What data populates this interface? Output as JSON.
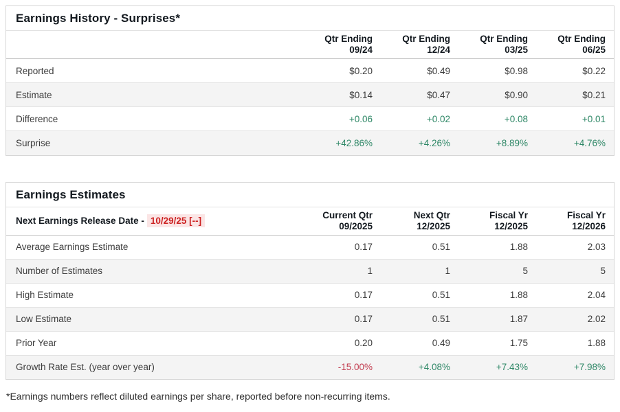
{
  "history": {
    "title": "Earnings History - Surprises*",
    "columns": [
      {
        "line1": "Qtr Ending",
        "line2": "09/24"
      },
      {
        "line1": "Qtr Ending",
        "line2": "12/24"
      },
      {
        "line1": "Qtr Ending",
        "line2": "03/25"
      },
      {
        "line1": "Qtr Ending",
        "line2": "06/25"
      }
    ],
    "rows": [
      {
        "label": "Reported",
        "values": [
          "$0.20",
          "$0.49",
          "$0.98",
          "$0.22"
        ]
      },
      {
        "label": "Estimate",
        "values": [
          "$0.14",
          "$0.47",
          "$0.90",
          "$0.21"
        ]
      },
      {
        "label": "Difference",
        "values": [
          "+0.06",
          "+0.02",
          "+0.08",
          "+0.01"
        ]
      },
      {
        "label": "Surprise",
        "values": [
          "+42.86%",
          "+4.26%",
          "+8.89%",
          "+4.76%"
        ]
      }
    ]
  },
  "estimates": {
    "title": "Earnings Estimates",
    "release_label": "Next Earnings Release Date -",
    "release_date": "10/29/25 [--]",
    "columns": [
      {
        "line1": "Current Qtr",
        "line2": "09/2025"
      },
      {
        "line1": "Next Qtr",
        "line2": "12/2025"
      },
      {
        "line1": "Fiscal Yr",
        "line2": "12/2025"
      },
      {
        "line1": "Fiscal Yr",
        "line2": "12/2026"
      }
    ],
    "rows": [
      {
        "label": "Average Earnings Estimate",
        "values": [
          "0.17",
          "0.51",
          "1.88",
          "2.03"
        ]
      },
      {
        "label": "Number of Estimates",
        "values": [
          "1",
          "1",
          "5",
          "5"
        ]
      },
      {
        "label": "High Estimate",
        "values": [
          "0.17",
          "0.51",
          "1.88",
          "2.04"
        ]
      },
      {
        "label": "Low Estimate",
        "values": [
          "0.17",
          "0.51",
          "1.87",
          "2.02"
        ]
      },
      {
        "label": "Prior Year",
        "values": [
          "0.20",
          "0.49",
          "1.75",
          "1.88"
        ]
      },
      {
        "label": "Growth Rate Est. (year over year)",
        "values": [
          "-15.00%",
          "+4.08%",
          "+7.43%",
          "+7.98%"
        ]
      }
    ]
  },
  "page": {
    "footnote": "*Earnings numbers reflect diluted earnings per share, reported before non-recurring items."
  },
  "colors": {
    "positive": "#2e8766",
    "negative": "#c23b4e",
    "release_date_red": "#cc2222",
    "release_date_bg": "#fbe5e5",
    "alt_row_bg": "#f4f4f4"
  }
}
